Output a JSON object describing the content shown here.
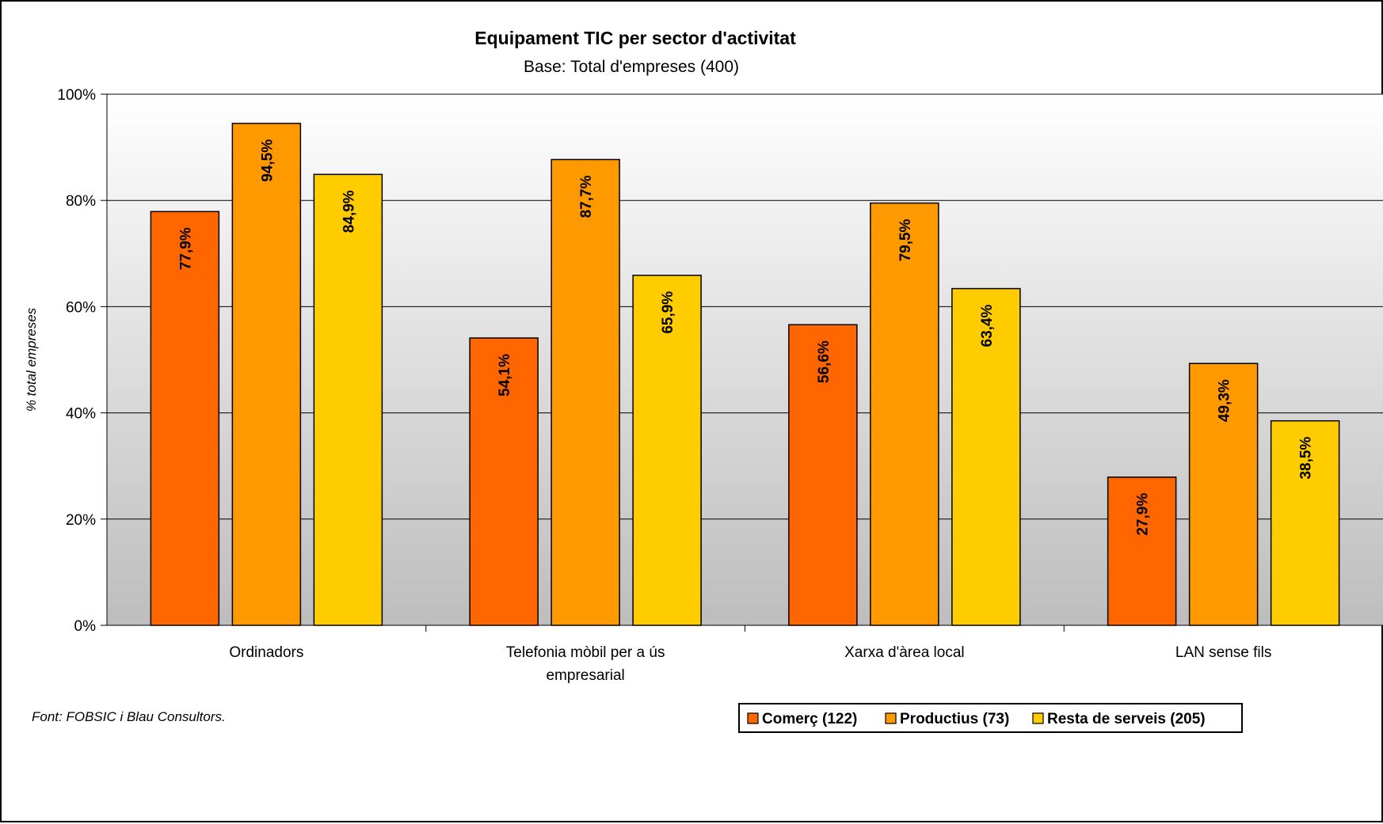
{
  "chart_data": {
    "type": "bar",
    "title": "Equipament TIC per sector d'activitat",
    "subtitle": "Base: Total d'empreses (400)",
    "ylabel": "% total empreses",
    "xlabel": "",
    "ylim": [
      0,
      100
    ],
    "yticks": [
      0,
      20,
      40,
      60,
      80,
      100
    ],
    "ytick_labels": [
      "0%",
      "20%",
      "40%",
      "60%",
      "80%",
      "100%"
    ],
    "grid": true,
    "legend_position": "bottom-right",
    "categories": [
      [
        "Ordinadors"
      ],
      [
        "Telefonia mòbil per a ús",
        "empresarial"
      ],
      [
        "Xarxa d'àrea local"
      ],
      [
        "LAN sense fils"
      ]
    ],
    "series": [
      {
        "name": "Comerç (122)",
        "color": "#FF6600",
        "values": [
          77.9,
          54.1,
          56.6,
          27.9
        ],
        "labels": [
          "77,9%",
          "54,1%",
          "56,6%",
          "27,9%"
        ]
      },
      {
        "name": "Productius (73)",
        "color": "#FF9900",
        "values": [
          94.5,
          87.7,
          79.5,
          49.3
        ],
        "labels": [
          "94,5%",
          "87,7%",
          "79,5%",
          "49,3%"
        ]
      },
      {
        "name": "Resta de serveis (205)",
        "color": "#FFCC00",
        "values": [
          84.9,
          65.9,
          63.4,
          38.5
        ],
        "labels": [
          "84,9%",
          "65,9%",
          "63,4%",
          "38,5%"
        ]
      }
    ]
  },
  "footnote": "Font: FOBSIC i Blau Consultors."
}
